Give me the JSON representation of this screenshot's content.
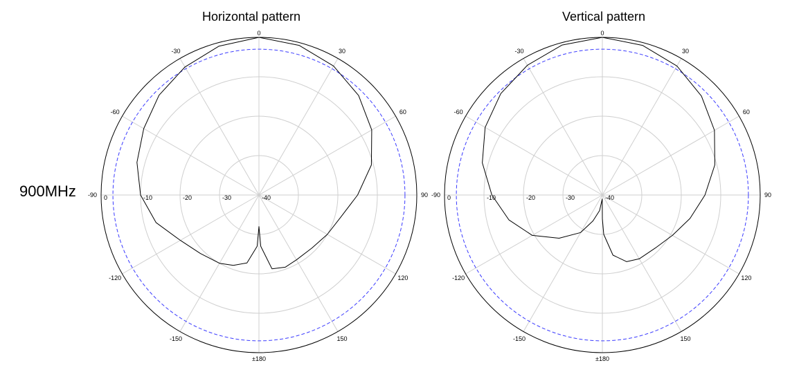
{
  "frequency_label": "900MHz",
  "colors": {
    "grid": "#cfcfcf",
    "outer": "#000000",
    "reference": "#3a3aff",
    "pattern": "#000000"
  },
  "chart_data": [
    {
      "type": "polar-line",
      "title": "Horizontal pattern",
      "r_range_db": [
        -40,
        0
      ],
      "r_ticks": [
        0,
        -10,
        -20,
        -30,
        -40
      ],
      "r_tick_labels": [
        "0",
        "-10",
        "-20",
        "-30",
        "-40"
      ],
      "angle_ticks": [
        0,
        30,
        60,
        90,
        120,
        150,
        180,
        -150,
        -120,
        -90,
        -60,
        -30
      ],
      "angle_tick_labels": [
        "0",
        "30",
        "60",
        "90",
        "120",
        "150",
        "±180",
        "-150",
        "-120",
        "-90",
        "-60",
        "-30"
      ],
      "reference_circle_db": -3,
      "grid": true,
      "series": [
        {
          "angle_deg": [
            0,
            15,
            30,
            45,
            60,
            75,
            90,
            105,
            120,
            135,
            150,
            160,
            170,
            178,
            180,
            182,
            190,
            200,
            210,
            225,
            240,
            255,
            270,
            285,
            300,
            315,
            330,
            345,
            360
          ],
          "gain_db": [
            0,
            -0.7,
            -2.2,
            -4.3,
            -7.0,
            -10.5,
            -15,
            -18.5,
            -20,
            -21,
            -21,
            -20.5,
            -21,
            -27,
            -32,
            -27,
            -22.5,
            -21,
            -20,
            -19,
            -17,
            -13,
            -10,
            -8,
            -6.3,
            -4.2,
            -2.5,
            -0.9,
            0
          ]
        }
      ]
    },
    {
      "type": "polar-line",
      "title": "Vertical pattern",
      "r_range_db": [
        -40,
        0
      ],
      "r_ticks": [
        0,
        -10,
        -20,
        -30,
        -40
      ],
      "r_tick_labels": [
        "0",
        "-10",
        "-20",
        "-30",
        "-40"
      ],
      "angle_ticks": [
        0,
        30,
        60,
        90,
        120,
        150,
        180,
        -150,
        -120,
        -90,
        -60,
        -30
      ],
      "angle_tick_labels": [
        "0",
        "30",
        "60",
        "90",
        "120",
        "150",
        "±180",
        "-150",
        "-120",
        "-90",
        "-60",
        "-30"
      ],
      "reference_circle_db": -3,
      "grid": true,
      "series": [
        {
          "angle_deg": [
            0,
            15,
            30,
            45,
            60,
            75,
            90,
            105,
            120,
            135,
            150,
            160,
            170,
            178,
            180,
            182,
            190,
            200,
            210,
            225,
            240,
            255,
            270,
            285,
            300,
            315,
            330,
            345,
            360
          ],
          "gain_db": [
            0,
            -0.7,
            -2.2,
            -4.5,
            -7.2,
            -10.5,
            -14,
            -17,
            -19.5,
            -21,
            -21.3,
            -22,
            -24.5,
            -30,
            -34,
            -39,
            -36,
            -33,
            -29,
            -24.5,
            -19.5,
            -15.5,
            -12,
            -8.5,
            -5.7,
            -3.6,
            -2,
            -0.6,
            0
          ]
        }
      ]
    }
  ]
}
